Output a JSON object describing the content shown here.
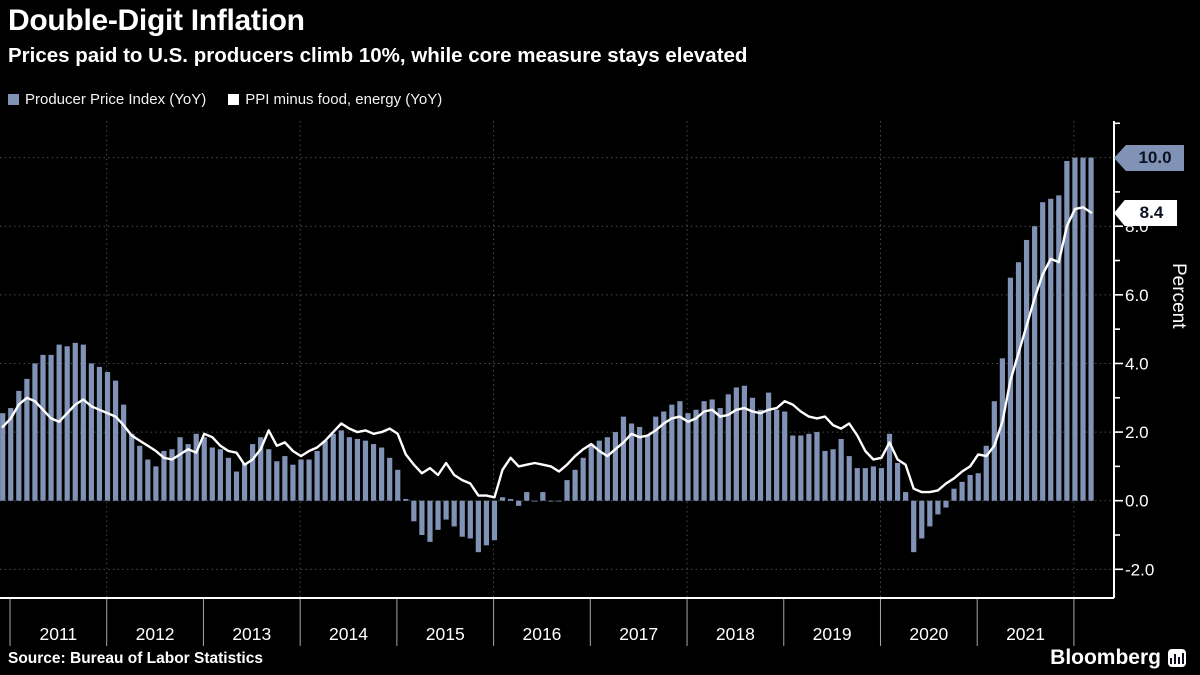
{
  "header": {
    "title": "Double-Digit Inflation",
    "subtitle": "Prices paid to U.S. producers climb 10%, while core measure stays elevated"
  },
  "legend": {
    "items": [
      {
        "label": "Producer Price Index (YoY)",
        "swatch_color": "#8093B6"
      },
      {
        "label": "PPI minus food, energy (YoY)",
        "swatch_color": "#FFFFFF"
      }
    ]
  },
  "badges": {
    "bar_end_value": "10.0",
    "line_end_value": "8.4"
  },
  "y_axis": {
    "unit_label": "Percent",
    "tick_labels": [
      "8.0",
      "6.0",
      "4.0",
      "2.0",
      "0.0",
      "-2.0"
    ],
    "tick_values": [
      8,
      6,
      4,
      2,
      0,
      -2
    ]
  },
  "x_axis": {
    "year_labels": [
      "2011",
      "2012",
      "2013",
      "2014",
      "2015",
      "2016",
      "2017",
      "2018",
      "2019",
      "2020",
      "2021"
    ]
  },
  "footer": {
    "source": "Source: Bureau of Labor Statistics",
    "brand": "Bloomberg"
  },
  "colors": {
    "background": "#000000",
    "bar": "#8093B6",
    "line": "#FFFFFF",
    "badge_text": "#0D1220",
    "grid": "rgba(255,255,255,0.30)",
    "axis": "#FFFFFF",
    "separator": "rgba(255,255,255,0.65)"
  },
  "chart_data": {
    "type": "bar+line",
    "title": "Double-Digit Inflation",
    "subtitle": "Prices paid to U.S. producers climb 10%, while core measure stays elevated",
    "ylabel": "Percent",
    "ylim": [
      -2.85,
      11.1
    ],
    "grid": true,
    "grid_y_values": [
      10,
      8,
      6,
      4,
      2,
      0,
      -2
    ],
    "grid_x_years": [
      2012,
      2014,
      2016,
      2018,
      2020,
      2022
    ],
    "frequency": "monthly",
    "x_start": "2010-11",
    "x_end": "2022-02",
    "legend_position": "top-left",
    "series": [
      {
        "name": "Producer Price Index (YoY)",
        "type": "bar",
        "values": [
          2.55,
          2.7,
          3.2,
          3.55,
          4.0,
          4.25,
          4.25,
          4.55,
          4.5,
          4.6,
          4.55,
          4.0,
          3.9,
          3.75,
          3.5,
          2.8,
          1.95,
          1.6,
          1.2,
          1.0,
          1.45,
          1.5,
          1.85,
          1.65,
          1.95,
          1.85,
          1.55,
          1.5,
          1.25,
          0.85,
          1.1,
          1.65,
          1.85,
          1.5,
          1.15,
          1.3,
          1.05,
          1.2,
          1.2,
          1.45,
          1.75,
          1.95,
          2.05,
          1.85,
          1.8,
          1.75,
          1.65,
          1.55,
          1.25,
          0.9,
          0.05,
          -0.6,
          -1.0,
          -1.2,
          -0.85,
          -0.55,
          -0.75,
          -1.05,
          -1.1,
          -1.5,
          -1.3,
          -1.15,
          0.1,
          0.05,
          -0.15,
          0.25,
          0.0,
          0.25,
          0.0,
          0.0,
          0.6,
          0.9,
          1.25,
          1.6,
          1.75,
          1.85,
          2.0,
          2.45,
          2.25,
          2.15,
          1.9,
          2.45,
          2.6,
          2.8,
          2.9,
          2.55,
          2.65,
          2.9,
          2.95,
          2.7,
          3.1,
          3.3,
          3.35,
          3.0,
          2.65,
          3.15,
          2.65,
          2.6,
          1.9,
          1.9,
          1.95,
          2.0,
          1.45,
          1.5,
          1.8,
          1.3,
          0.95,
          0.95,
          1.0,
          0.95,
          1.95,
          1.1,
          0.25,
          -1.5,
          -1.1,
          -0.75,
          -0.4,
          -0.2,
          0.35,
          0.55,
          0.75,
          0.8,
          1.6,
          2.9,
          4.15,
          6.5,
          6.95,
          7.6,
          8.0,
          8.7,
          8.8,
          8.9,
          9.9,
          10.0,
          10.0,
          10.0
        ]
      },
      {
        "name": "PPI minus food, energy (YoY)",
        "type": "line",
        "values": [
          2.15,
          2.4,
          2.8,
          3.0,
          2.9,
          2.65,
          2.4,
          2.3,
          2.55,
          2.8,
          2.95,
          2.75,
          2.65,
          2.55,
          2.45,
          2.2,
          1.9,
          1.75,
          1.6,
          1.45,
          1.25,
          1.2,
          1.35,
          1.5,
          1.4,
          1.95,
          1.85,
          1.6,
          1.45,
          1.4,
          1.05,
          1.2,
          1.5,
          2.05,
          1.6,
          1.7,
          1.45,
          1.3,
          1.45,
          1.55,
          1.75,
          2.0,
          2.25,
          2.1,
          2.0,
          2.05,
          1.95,
          2.0,
          2.1,
          1.95,
          1.35,
          1.05,
          0.8,
          0.95,
          0.75,
          1.1,
          0.75,
          0.6,
          0.5,
          0.15,
          0.15,
          0.1,
          0.9,
          1.25,
          1.0,
          1.05,
          1.1,
          1.05,
          1.0,
          0.85,
          1.05,
          1.3,
          1.5,
          1.65,
          1.45,
          1.3,
          1.5,
          1.7,
          1.95,
          1.85,
          1.9,
          2.05,
          2.25,
          2.4,
          2.45,
          2.3,
          2.4,
          2.6,
          2.65,
          2.45,
          2.5,
          2.65,
          2.7,
          2.6,
          2.55,
          2.65,
          2.7,
          2.9,
          2.8,
          2.6,
          2.45,
          2.4,
          2.45,
          2.2,
          2.1,
          2.25,
          1.9,
          1.45,
          1.2,
          1.25,
          1.7,
          1.2,
          1.05,
          0.35,
          0.25,
          0.25,
          0.3,
          0.5,
          0.65,
          0.85,
          1.0,
          1.35,
          1.3,
          1.6,
          2.3,
          3.5,
          4.3,
          5.1,
          5.9,
          6.6,
          7.05,
          6.95,
          8.0,
          8.5,
          8.55,
          8.4
        ]
      }
    ],
    "annotations": [
      {
        "text": "10.0",
        "series": "Producer Price Index (YoY)",
        "position": "last-value"
      },
      {
        "text": "8.4",
        "series": "PPI minus food, energy (YoY)",
        "position": "last-value"
      }
    ]
  }
}
